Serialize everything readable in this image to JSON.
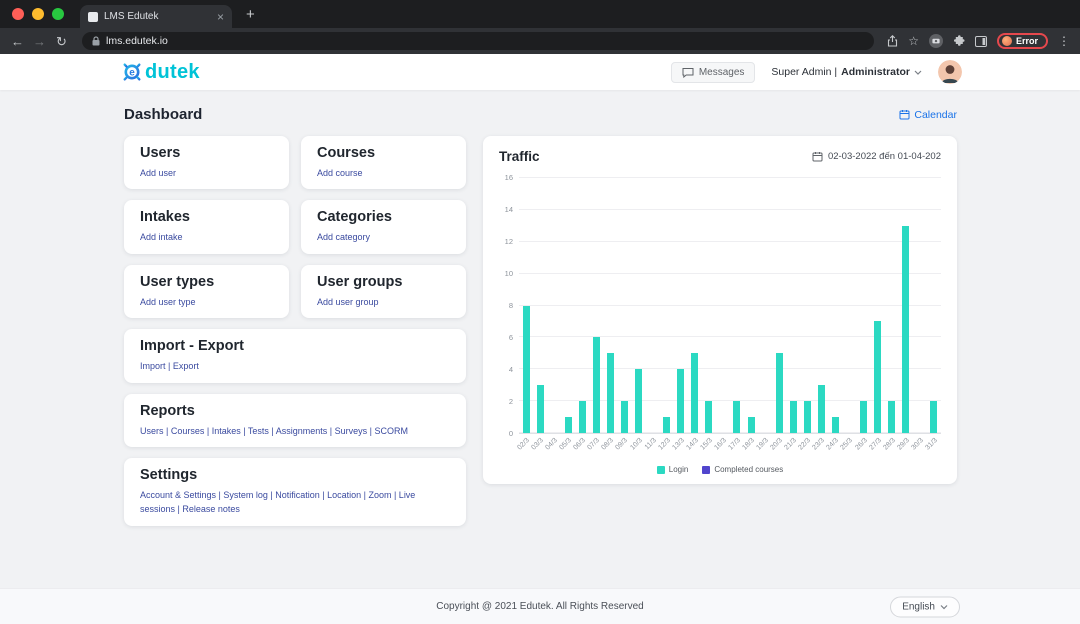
{
  "colors": {
    "brand_teal": "#00c3d7",
    "link_blue": "#1a73e8",
    "card_link_blue": "#3a4a9f",
    "error_red": "#e5484d"
  },
  "browser": {
    "tab_title": "LMS Edutek",
    "url": "lms.edutek.io",
    "error_badge": "Error"
  },
  "header": {
    "logo_text": "dutek",
    "messages_label": "Messages",
    "user_prefix": "Super Admin |",
    "user_role": "Administrator"
  },
  "page": {
    "title": "Dashboard",
    "calendar_label": "Calendar"
  },
  "cards": [
    {
      "title": "Users",
      "links": "Add user"
    },
    {
      "title": "Courses",
      "links": "Add course"
    },
    {
      "title": "Intakes",
      "links": "Add intake"
    },
    {
      "title": "Categories",
      "links": "Add category"
    },
    {
      "title": "User types",
      "links": "Add user type"
    },
    {
      "title": "User groups",
      "links": "Add user group"
    },
    {
      "title": "Import - Export",
      "links": "Import | Export"
    },
    {
      "title": "Reports",
      "links": "Users | Courses | Intakes | Tests | Assignments | Surveys | SCORM"
    },
    {
      "title": "Settings",
      "links": "Account & Settings | System log | Notification | Location | Zoom | Live sessions | Release notes"
    }
  ],
  "traffic": {
    "title": "Traffic",
    "date_range": "02-03-2022 đến 01-04-202"
  },
  "chart_data": {
    "type": "bar",
    "title": "Traffic",
    "categories": [
      "02/3",
      "03/3",
      "04/3",
      "05/3",
      "06/3",
      "07/3",
      "08/3",
      "09/3",
      "10/3",
      "11/3",
      "12/3",
      "13/3",
      "14/3",
      "15/3",
      "16/3",
      "17/3",
      "18/3",
      "19/3",
      "20/3",
      "21/3",
      "22/3",
      "23/3",
      "24/3",
      "25/3",
      "26/3",
      "27/3",
      "28/3",
      "29/3",
      "30/3",
      "31/3"
    ],
    "series": [
      {
        "name": "Login",
        "values": [
          8,
          3,
          0,
          1,
          2,
          6,
          5,
          2,
          4,
          0,
          1,
          4,
          5,
          2,
          0,
          2,
          1,
          0,
          5,
          2,
          2,
          3,
          1,
          0,
          2,
          7,
          2,
          13,
          0,
          2
        ]
      },
      {
        "name": "Completed courses",
        "values": [
          0,
          0,
          0,
          0,
          0,
          0,
          0,
          0,
          0,
          0,
          0,
          0,
          0,
          0,
          0,
          0,
          0,
          0,
          0,
          0,
          0,
          0,
          0,
          0,
          0,
          0,
          0,
          0,
          0,
          0
        ]
      }
    ],
    "colors": [
      "#2bd9c2",
      "#5145cd"
    ],
    "xlabel": "",
    "ylabel": "",
    "ylim": [
      0,
      16
    ],
    "ytick_step": 2,
    "grid": true,
    "legend_position": "bottom"
  },
  "footer": {
    "copyright": "Copyright @ 2021 Edutek. All Rights Reserved",
    "language": "English"
  }
}
